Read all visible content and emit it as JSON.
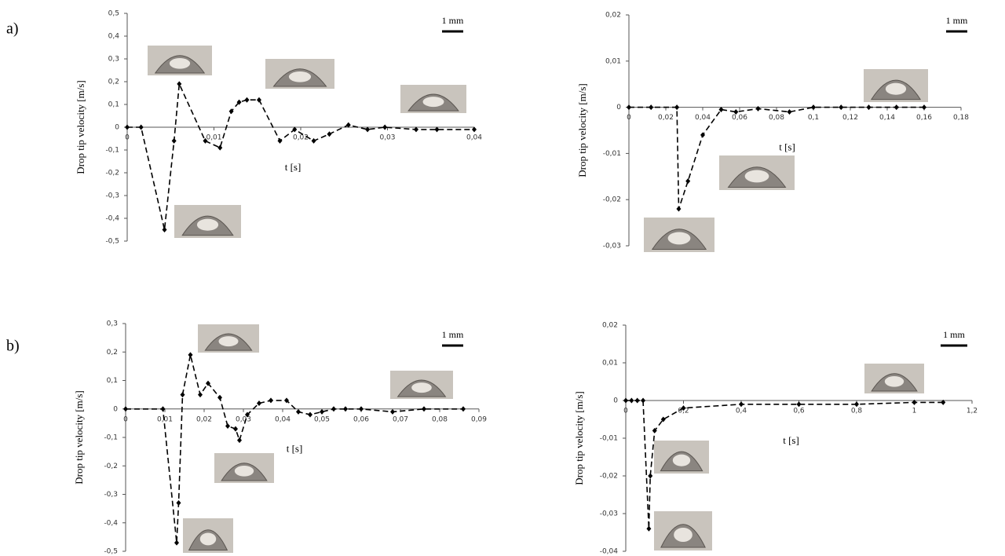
{
  "panel_labels": [
    "a)",
    "b)"
  ],
  "chart_data": [
    {
      "type": "line",
      "ylabel": "Drop tip velocity [m/s]",
      "xlabel": "t [s]",
      "annotation": "1 mm",
      "color": "#000000",
      "xlim": [
        0,
        0.04
      ],
      "ylim": [
        -0.5,
        0.5
      ],
      "xticks": [
        0,
        {
          "value": 0.01,
          "label": "0,01"
        },
        {
          "value": 0.02,
          "label": "0,02"
        },
        {
          "value": 0.03,
          "label": "0,03"
        },
        {
          "value": 0.04,
          "label": "0,04"
        }
      ],
      "yticks": [
        {
          "value": -0.5,
          "label": "-0,5"
        },
        {
          "value": -0.4,
          "label": "-0,4"
        },
        {
          "value": -0.3,
          "label": "-0,3"
        },
        {
          "value": -0.2,
          "label": "-0,2"
        },
        {
          "value": -0.1,
          "label": "-0,1"
        },
        0,
        {
          "value": 0.1,
          "label": "0,1"
        },
        {
          "value": 0.2,
          "label": "0,2"
        },
        {
          "value": 0.3,
          "label": "0,3"
        },
        {
          "value": 0.4,
          "label": "0,4"
        },
        {
          "value": 0.5,
          "label": "0,5"
        }
      ],
      "x": [
        0,
        0.0016,
        0.0043,
        0.0054,
        0.006,
        0.009,
        0.0107,
        0.012,
        0.0129,
        0.0138,
        0.0152,
        0.0176,
        0.0193,
        0.0215,
        0.0233,
        0.0255,
        0.0277,
        0.0297,
        0.0333,
        0.0357,
        0.04
      ],
      "values": [
        0,
        0,
        -0.45,
        -0.06,
        0.19,
        -0.06,
        -0.09,
        0.07,
        0.11,
        0.12,
        0.12,
        -0.06,
        -0.01,
        -0.06,
        -0.03,
        0.01,
        -0.01,
        0,
        -0.01,
        -0.01,
        -0.01
      ]
    },
    {
      "type": "line",
      "ylabel": "Drop tip velocity [m/s]",
      "xlabel": "t [s]",
      "annotation": "1 mm",
      "color": "#000000",
      "xlim": [
        0,
        0.18
      ],
      "ylim": [
        -0.03,
        0.02
      ],
      "xticks": [
        0,
        {
          "value": 0.02,
          "label": "0,02"
        },
        {
          "value": 0.04,
          "label": "0,04"
        },
        {
          "value": 0.06,
          "label": "0,06"
        },
        {
          "value": 0.08,
          "label": "0,08"
        },
        {
          "value": 0.1,
          "label": "0,1"
        },
        {
          "value": 0.12,
          "label": "0,12"
        },
        {
          "value": 0.14,
          "label": "0,14"
        },
        {
          "value": 0.16,
          "label": "0,16"
        },
        {
          "value": 0.18,
          "label": "0,18"
        }
      ],
      "yticks": [
        {
          "value": -0.03,
          "label": "-0,03"
        },
        {
          "value": -0.02,
          "label": "-0,02"
        },
        {
          "value": -0.01,
          "label": "-0,01"
        },
        0,
        {
          "value": 0.01,
          "label": "0,01"
        },
        {
          "value": 0.02,
          "label": "0,02"
        }
      ],
      "x": [
        0,
        0.012,
        0.026,
        0.027,
        0.032,
        0.04,
        0.05,
        0.058,
        0.07,
        0.087,
        0.1,
        0.115,
        0.13,
        0.145,
        0.16
      ],
      "values": [
        0,
        0,
        0,
        -0.022,
        -0.016,
        -0.006,
        -0.0005,
        -0.001,
        -0.0003,
        -0.001,
        0,
        0,
        0,
        0,
        0
      ]
    },
    {
      "type": "line",
      "ylabel": "Drop tip velocity [m/s]",
      "xlabel": "t [s]",
      "annotation": "1 mm",
      "color": "#000000",
      "xlim": [
        0,
        0.09
      ],
      "ylim": [
        -0.5,
        0.3
      ],
      "xticks": [
        0,
        {
          "value": 0.01,
          "label": "0,01"
        },
        {
          "value": 0.02,
          "label": "0,02"
        },
        {
          "value": 0.03,
          "label": "0,03"
        },
        {
          "value": 0.04,
          "label": "0,04"
        },
        {
          "value": 0.05,
          "label": "0,05"
        },
        {
          "value": 0.06,
          "label": "0,06"
        },
        {
          "value": 0.07,
          "label": "0,07"
        },
        {
          "value": 0.08,
          "label": "0,08"
        },
        {
          "value": 0.09,
          "label": "0,09"
        }
      ],
      "yticks": [
        {
          "value": -0.5,
          "label": "-0,5"
        },
        {
          "value": -0.4,
          "label": "-0,4"
        },
        {
          "value": -0.3,
          "label": "-0,3"
        },
        {
          "value": -0.2,
          "label": "-0,2"
        },
        {
          "value": -0.1,
          "label": "-0,1"
        },
        0,
        {
          "value": 0.1,
          "label": "0,1"
        },
        {
          "value": 0.2,
          "label": "0,2"
        },
        {
          "value": 0.3,
          "label": "0,3"
        }
      ],
      "x": [
        0,
        0.0095,
        0.013,
        0.0135,
        0.0145,
        0.0165,
        0.019,
        0.021,
        0.024,
        0.026,
        0.028,
        0.029,
        0.031,
        0.034,
        0.037,
        0.041,
        0.044,
        0.047,
        0.05,
        0.053,
        0.056,
        0.06,
        0.068,
        0.076,
        0.086
      ],
      "values": [
        0,
        0,
        -0.47,
        -0.33,
        0.05,
        0.19,
        0.05,
        0.09,
        0.04,
        -0.06,
        -0.07,
        -0.11,
        -0.02,
        0.02,
        0.03,
        0.03,
        -0.01,
        -0.02,
        -0.01,
        0,
        0,
        0,
        -0.01,
        0,
        0
      ]
    },
    {
      "type": "line",
      "ylabel": "Drop tip velocity [m/s]",
      "xlabel": "t [s]",
      "annotation": "1 mm",
      "color": "#000000",
      "xlim": [
        0,
        1.2
      ],
      "ylim": [
        -0.04,
        0.02
      ],
      "xticks": [
        0,
        {
          "value": 0.2,
          "label": "0,2"
        },
        {
          "value": 0.4,
          "label": "0,4"
        },
        {
          "value": 0.6,
          "label": "0,6"
        },
        {
          "value": 0.8,
          "label": "0,8"
        },
        1,
        {
          "value": 1.2,
          "label": "1,2"
        }
      ],
      "yticks": [
        {
          "value": -0.04,
          "label": "-0,04"
        },
        {
          "value": -0.03,
          "label": "-0,03"
        },
        {
          "value": -0.02,
          "label": "-0,02"
        },
        {
          "value": -0.01,
          "label": "-0,01"
        },
        0,
        {
          "value": 0.01,
          "label": "0,01"
        },
        {
          "value": 0.02,
          "label": "0,02"
        }
      ],
      "x": [
        0,
        0.02,
        0.04,
        0.06,
        0.08,
        0.085,
        0.1,
        0.13,
        0.2,
        0.4,
        0.6,
        0.8,
        1,
        1.1
      ],
      "values": [
        0,
        0,
        0,
        0,
        -0.034,
        -0.02,
        -0.008,
        -0.005,
        -0.002,
        -0.001,
        -0.001,
        -0.001,
        -0.0005,
        -0.0005
      ]
    }
  ]
}
